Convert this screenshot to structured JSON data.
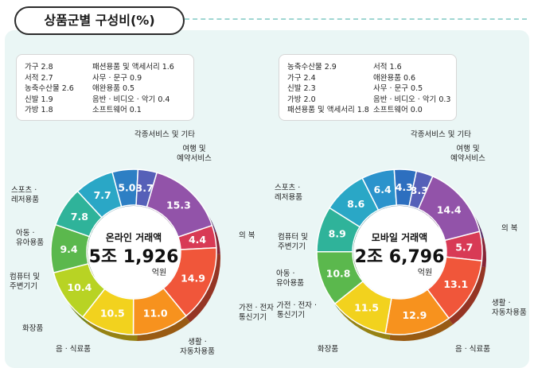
{
  "title": "상품군별 구성비(%)",
  "colors": {
    "panel_bg": "#eaf6f5",
    "header_rule": "#9fd6d2"
  },
  "chart_data": [
    {
      "type": "pie",
      "center": {
        "title": "온라인 거래액",
        "value": "5조 1,926",
        "unit": "억원"
      },
      "legend_text": {
        "left": [
          "가구 2.8",
          "서적 2.7",
          "농축수산물 2.6",
          "신발 1.9",
          "가방 1.8"
        ],
        "right": [
          "패션용품 및 액세서리 1.6",
          "사무 · 문구 0.9",
          "애완용품 0.5",
          "음반 · 비디오 · 악기 0.4",
          "소프트웨어 0.1"
        ]
      },
      "slices": [
        {
          "category": "각종서비스 및 기타",
          "value": 4.4,
          "label": "4.4",
          "color": "#d83a55"
        },
        {
          "category": "여행 및|예약서비스",
          "value": 14.9,
          "label": "14.9",
          "color": "#f0563a"
        },
        {
          "category": "의 복",
          "value": 11.0,
          "label": "11.0",
          "color": "#f7921e"
        },
        {
          "category": "가전 · 전자 ·|통신기기",
          "value": 10.5,
          "label": "10.5",
          "color": "#f2d21e"
        },
        {
          "category": "생활 ·|자동차용품",
          "value": 10.4,
          "label": "10.4",
          "color": "#b8d324"
        },
        {
          "category": "음 · 식료품",
          "value": 9.4,
          "label": "9.4",
          "color": "#5bb84d"
        },
        {
          "category": "화장품",
          "value": 7.8,
          "label": "7.8",
          "color": "#2fb39a"
        },
        {
          "category": "컴퓨터 및|주변기기",
          "value": 7.7,
          "label": "7.7",
          "color": "#2aa7c6"
        },
        {
          "category": "아동 ·|유아용품",
          "value": 5.0,
          "label": "5.0",
          "color": "#2d7fc4"
        },
        {
          "category": "스포츠 ·|레저용품",
          "value": 3.7,
          "label": "3.7",
          "color": "#5660b8"
        },
        {
          "category": "기타(범례)",
          "value": 15.3,
          "label": "15.3",
          "color": "#9253a9"
        }
      ]
    },
    {
      "type": "pie",
      "center": {
        "title": "모바일 거래액",
        "value": "2조 6,796",
        "unit": "억원"
      },
      "legend_text": {
        "left": [
          "농축수산물 2.9",
          "가구 2.4",
          "신발 2.3",
          "가방 2.0",
          "패션용품 및 액세서리 1.8"
        ],
        "right": [
          "서적 1.6",
          "애완용품 0.6",
          "사무 · 문구 0.5",
          "음반 · 비디오 · 악기 0.3",
          "소프트웨어 0.0"
        ]
      },
      "slices": [
        {
          "category": "각종서비스 및 기타",
          "value": 5.7,
          "label": "5.7",
          "color": "#d83a55"
        },
        {
          "category": "여행 및|예약서비스",
          "value": 13.1,
          "label": "13.1",
          "color": "#f0563a"
        },
        {
          "category": "의 복",
          "value": 12.9,
          "label": "12.9",
          "color": "#f7921e"
        },
        {
          "category": "생활 ·|자동차용품",
          "value": 11.5,
          "label": "11.5",
          "color": "#f2d21e"
        },
        {
          "category": "음 · 식료품",
          "value": 10.8,
          "label": "10.8",
          "color": "#5bb84d"
        },
        {
          "category": "화장품",
          "value": 8.9,
          "label": "8.9",
          "color": "#2fb39a"
        },
        {
          "category": "가전 · 전자 ·|통신기기",
          "value": 8.6,
          "label": "8.6",
          "color": "#2aa7c6"
        },
        {
          "category": "아동 ·|유아용품",
          "value": 6.4,
          "label": "6.4",
          "color": "#2b93cc"
        },
        {
          "category": "컴퓨터 및|주변기기",
          "value": 4.3,
          "label": "4.3",
          "color": "#2d6fbf"
        },
        {
          "category": "스포츠 ·|레저용품",
          "value": 3.3,
          "label": "3.3",
          "color": "#5660b8"
        },
        {
          "category": "기타(범례)",
          "value": 14.4,
          "label": "14.4",
          "color": "#9253a9"
        }
      ]
    }
  ]
}
